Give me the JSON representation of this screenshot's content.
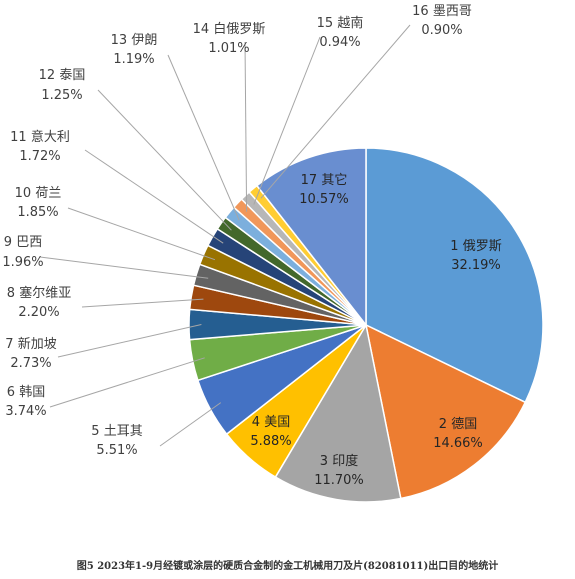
{
  "caption": "图5 2023年1-9月经镀或涂层的硬质合金制的金工机械用刀及片(82081011)出口目的地统计",
  "chart_data": {
    "type": "pie",
    "title": "",
    "slices": [
      {
        "label": "1 俄罗斯",
        "value": 32.19,
        "display": "32.19%",
        "color": "#5B9BD5"
      },
      {
        "label": "2 德国",
        "value": 14.66,
        "display": "14.66%",
        "color": "#ED7D31"
      },
      {
        "label": "3 印度",
        "value": 11.7,
        "display": "11.70%",
        "color": "#A5A5A5"
      },
      {
        "label": "4 美国",
        "value": 5.88,
        "display": "5.88%",
        "color": "#FFC000"
      },
      {
        "label": "5 土耳其",
        "value": 5.51,
        "display": "5.51%",
        "color": "#4472C4"
      },
      {
        "label": "6 韩国",
        "value": 3.74,
        "display": "3.74%",
        "color": "#70AD47"
      },
      {
        "label": "7 新加坡",
        "value": 2.73,
        "display": "2.73%",
        "color": "#255E91"
      },
      {
        "label": "8 塞尔维亚",
        "value": 2.2,
        "display": "2.20%",
        "color": "#9E480E"
      },
      {
        "label": "9 巴西",
        "value": 1.96,
        "display": "1.96%",
        "color": "#636363"
      },
      {
        "label": "10 荷兰",
        "value": 1.85,
        "display": "1.85%",
        "color": "#997300"
      },
      {
        "label": "11 意大利",
        "value": 1.72,
        "display": "1.72%",
        "color": "#264478"
      },
      {
        "label": "12 泰国",
        "value": 1.25,
        "display": "1.25%",
        "color": "#43682B"
      },
      {
        "label": "13 伊朗",
        "value": 1.19,
        "display": "1.19%",
        "color": "#7CAFDD"
      },
      {
        "label": "14 白俄罗斯",
        "value": 1.01,
        "display": "1.01%",
        "color": "#F1975A"
      },
      {
        "label": "15 越南",
        "value": 0.94,
        "display": "0.94%",
        "color": "#B7B7B7"
      },
      {
        "label": "16 墨西哥",
        "value": 0.9,
        "display": "0.90%",
        "color": "#FFCD33"
      },
      {
        "label": "17 其它",
        "value": 10.57,
        "display": "10.57%",
        "color": "#698ED0"
      }
    ]
  }
}
